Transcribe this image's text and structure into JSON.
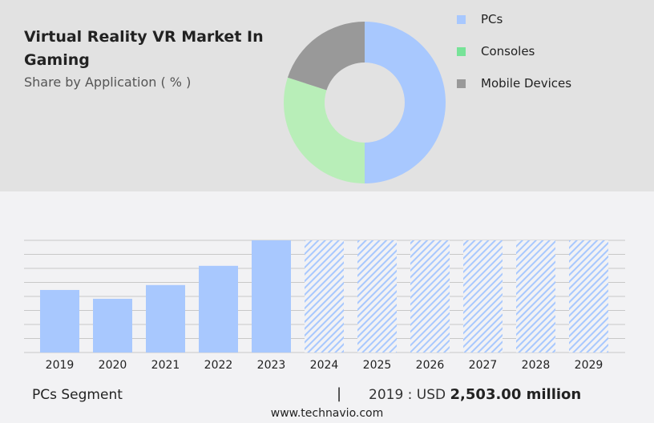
{
  "header": {
    "title": "Virtual Reality VR Market In Gaming",
    "subtitle": "Share by Application ( % )"
  },
  "colors": {
    "pcs": "#a8c8fe",
    "consoles": "#b8eeb8",
    "consoles_legend": "#77e398",
    "mobile": "#999999"
  },
  "chart_data": [
    {
      "type": "pie",
      "donut": true,
      "series": [
        {
          "name": "PCs",
          "value": 50
        },
        {
          "name": "Consoles",
          "value": 30
        },
        {
          "name": "Mobile Devices",
          "value": 20
        }
      ],
      "legend": "right"
    },
    {
      "type": "bar",
      "categories": [
        "2019",
        "2020",
        "2021",
        "2022",
        "2023",
        "2024",
        "2025",
        "2026",
        "2027",
        "2028",
        "2029"
      ],
      "values": [
        2503,
        2150,
        2700,
        3470,
        4490,
        null,
        null,
        null,
        null,
        null,
        null
      ],
      "forecast_categories": [
        "2024",
        "2025",
        "2026",
        "2027",
        "2028",
        "2029"
      ],
      "ylabel": "",
      "xlabel": "",
      "grid": true
    }
  ],
  "footer": {
    "segment": "PCs Segment",
    "separator": "|",
    "year_label": "2019 : USD",
    "value": "2,503.00 million",
    "site": "www.technavio.com"
  }
}
